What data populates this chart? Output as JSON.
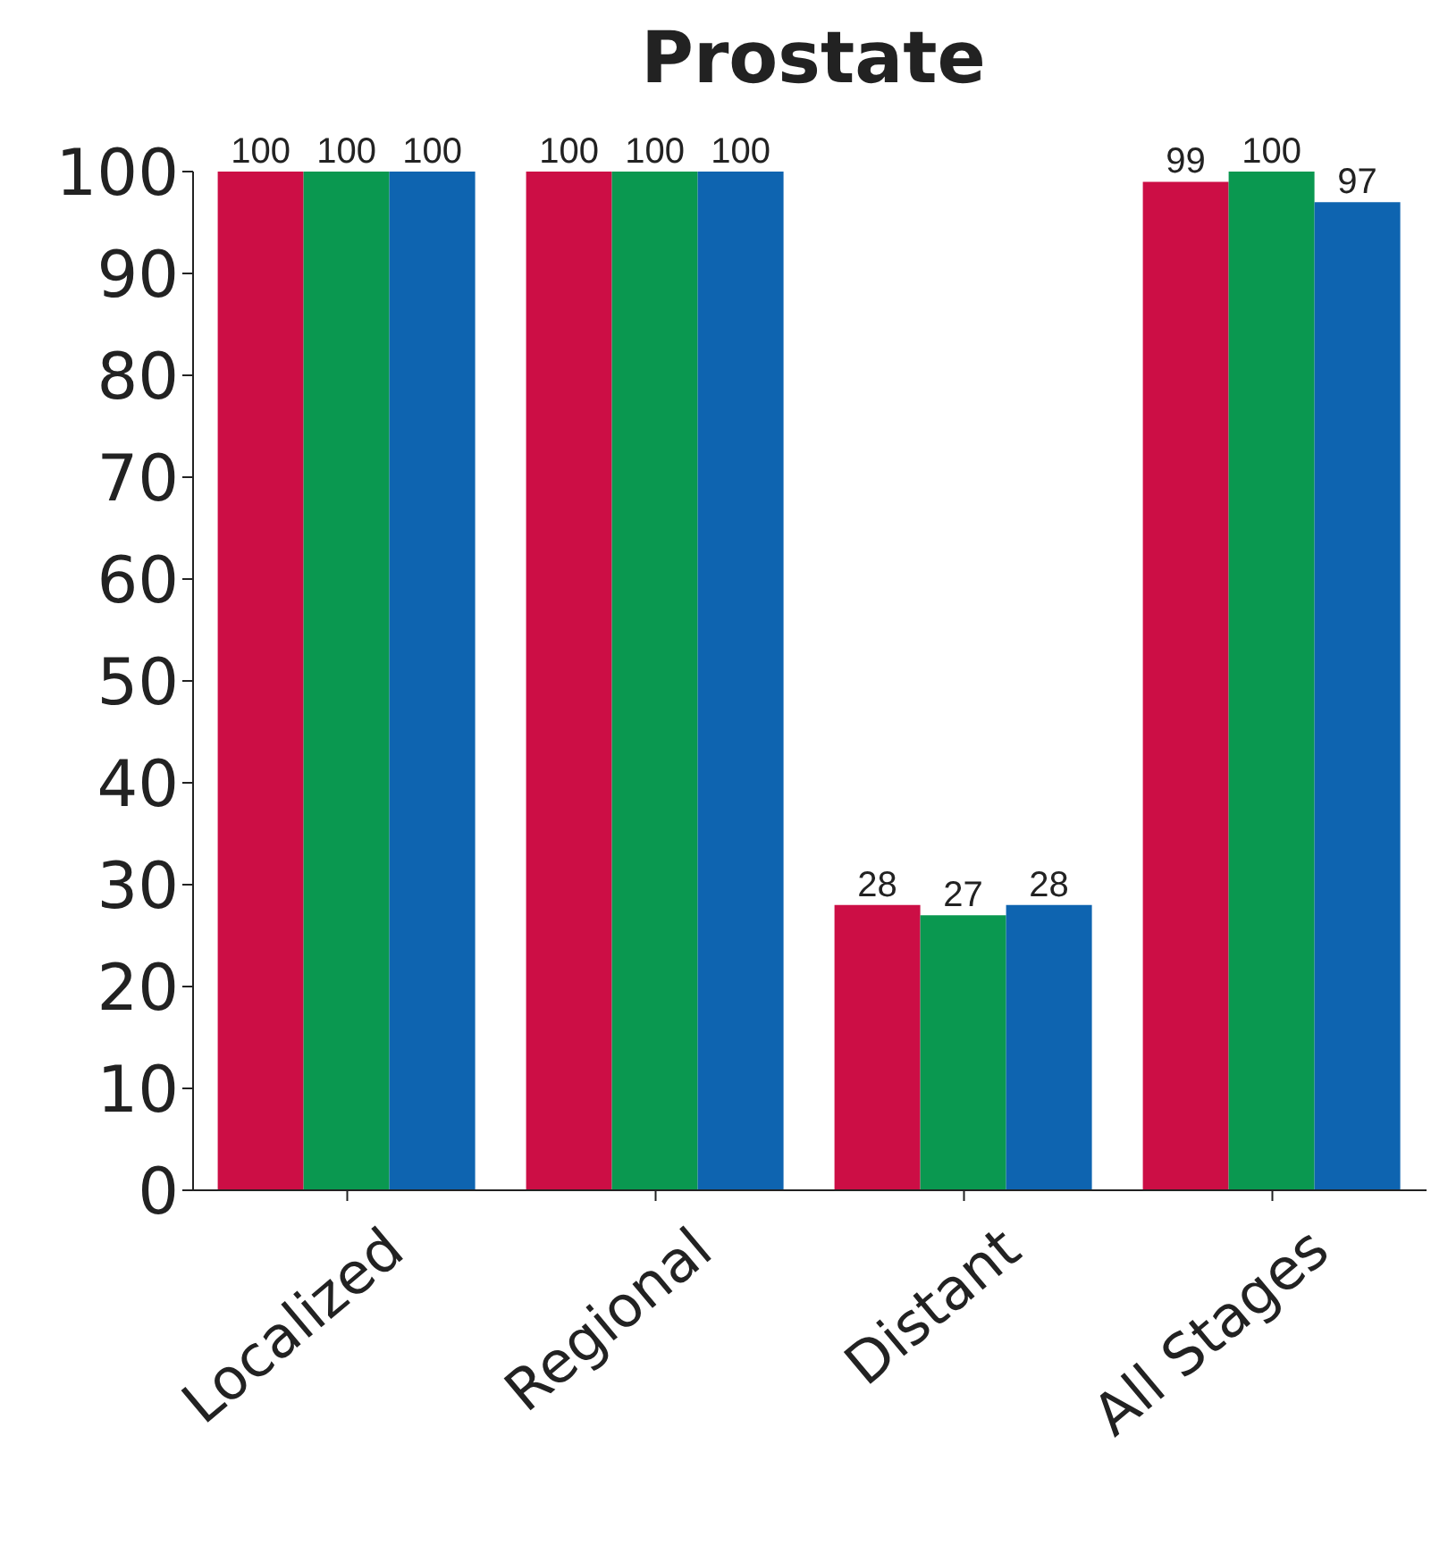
{
  "chart_data": {
    "type": "bar",
    "title": "Prostate",
    "categories": [
      "Localized",
      "Regional",
      "Distant",
      "All Stages"
    ],
    "series": [
      {
        "color": "#cc0e45",
        "values": [
          100,
          100,
          28,
          99
        ]
      },
      {
        "color": "#0a9850",
        "values": [
          100,
          100,
          27,
          100
        ]
      },
      {
        "color": "#0e64b0",
        "values": [
          100,
          100,
          28,
          97
        ]
      }
    ],
    "ylim": [
      0,
      100
    ],
    "yticks": [
      0,
      10,
      20,
      30,
      40,
      50,
      60,
      70,
      80,
      90,
      100
    ],
    "data_labels": true,
    "grid": false,
    "legend": false
  }
}
